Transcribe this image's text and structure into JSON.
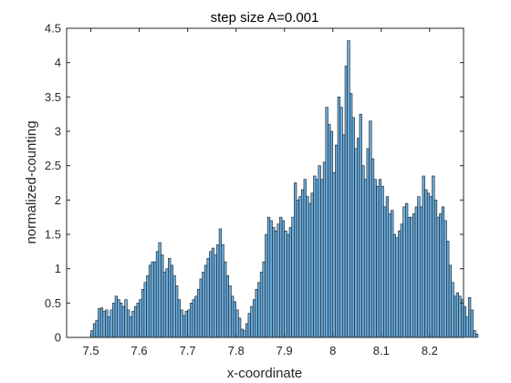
{
  "chart_data": {
    "type": "bar",
    "title": "step size A=0.001",
    "xlabel": "x-coordinate",
    "ylabel": "normalized-counting",
    "xlim": [
      7.45,
      8.27
    ],
    "ylim": [
      0,
      4.5
    ],
    "xticks": [
      7.5,
      7.6,
      7.7,
      7.8,
      7.9,
      8.0,
      8.1,
      8.2
    ],
    "xtick_labels": [
      "7.5",
      "7.6",
      "7.7",
      "7.8",
      "7.9",
      "8",
      "8.1",
      "8.2"
    ],
    "yticks": [
      0,
      0.5,
      1,
      1.5,
      2,
      2.5,
      3,
      3.5,
      4,
      4.5
    ],
    "ytick_labels": [
      "0",
      "0.5",
      "1",
      "1.5",
      "2",
      "2.5",
      "3",
      "3.5",
      "4",
      "4.5"
    ],
    "bin_width": 0.005,
    "x_start": 7.5025,
    "values": [
      0.1,
      0.2,
      0.25,
      0.42,
      0.43,
      0.38,
      0.4,
      0.3,
      0.4,
      0.5,
      0.6,
      0.55,
      0.5,
      0.45,
      0.55,
      0.4,
      0.3,
      0.38,
      0.45,
      0.5,
      0.55,
      0.7,
      0.8,
      0.9,
      1.05,
      1.1,
      1.1,
      1.25,
      1.38,
      1.2,
      0.95,
      1.0,
      1.15,
      1.05,
      0.9,
      0.75,
      0.55,
      0.4,
      0.32,
      0.38,
      0.4,
      0.5,
      0.55,
      0.6,
      0.7,
      0.85,
      0.95,
      1.05,
      1.15,
      1.25,
      1.3,
      1.2,
      1.35,
      1.58,
      1.35,
      1.1,
      0.9,
      0.75,
      0.6,
      0.52,
      0.4,
      0.28,
      0.12,
      0.1,
      0.2,
      0.35,
      0.45,
      0.55,
      0.7,
      0.8,
      0.95,
      1.1,
      1.5,
      1.75,
      1.7,
      1.6,
      1.55,
      1.65,
      1.75,
      1.7,
      1.55,
      1.5,
      1.6,
      1.75,
      2.25,
      2.0,
      2.05,
      2.15,
      2.3,
      2.05,
      1.95,
      2.1,
      2.35,
      2.3,
      2.5,
      2.3,
      2.55,
      3.35,
      3.1,
      3.0,
      2.4,
      2.8,
      3.5,
      3.35,
      2.95,
      3.95,
      4.32,
      3.55,
      3.2,
      2.75,
      2.9,
      3.25,
      2.5,
      2.3,
      2.75,
      3.15,
      2.6,
      2.3,
      2.2,
      2.3,
      2.2,
      1.9,
      2.05,
      1.8,
      1.85,
      1.5,
      1.45,
      1.55,
      1.65,
      1.9,
      1.95,
      1.75,
      1.75,
      1.8,
      1.9,
      2.05,
      1.9,
      2.35,
      2.15,
      2.1,
      2.05,
      2.35,
      2.0,
      1.75,
      1.8,
      1.9,
      1.7,
      1.4,
      1.05,
      0.8,
      0.6,
      0.65,
      0.6,
      0.55,
      0.45,
      0.3,
      0.58,
      0.4,
      0.1,
      0.05
    ]
  }
}
